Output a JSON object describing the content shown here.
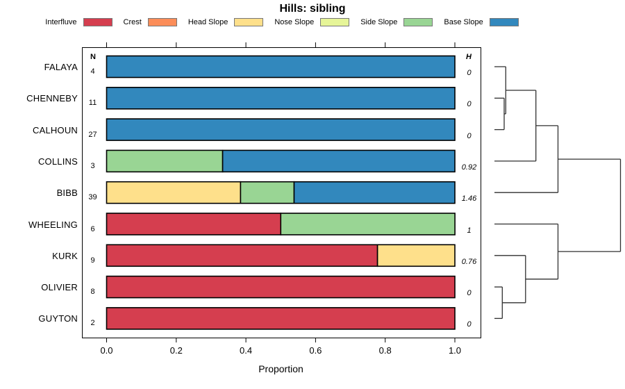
{
  "title": "Hills: sibling",
  "legend": {
    "items": [
      {
        "label": "Interfluve",
        "color": "#D53E4F"
      },
      {
        "label": "Crest",
        "color": "#FC8D59"
      },
      {
        "label": "Head Slope",
        "color": "#FEE08B"
      },
      {
        "label": "Nose Slope",
        "color": "#E6F598"
      },
      {
        "label": "Side Slope",
        "color": "#99D594"
      },
      {
        "label": "Base Slope",
        "color": "#3288BD"
      }
    ]
  },
  "columns": {
    "n_header": "N",
    "h_header": "H"
  },
  "axis": {
    "label": "Proportion",
    "tick_labels": [
      "0.0",
      "0.2",
      "0.4",
      "0.6",
      "0.8",
      "1.0"
    ]
  },
  "chart_data": {
    "type": "bar",
    "orientation": "horizontal",
    "stacked": true,
    "title": "Hills: sibling",
    "xlabel": "Proportion",
    "xlim": [
      0,
      1
    ],
    "x_ticks": [
      0,
      0.2,
      0.4,
      0.6,
      0.8,
      1.0
    ],
    "grid": false,
    "legend_position": "top",
    "categories": [
      "FALAYA",
      "CHENNEBY",
      "CALHOUN",
      "COLLINS",
      "BIBB",
      "WHEELING",
      "KURK",
      "OLIVIER",
      "GUYTON"
    ],
    "n_values": [
      4,
      11,
      27,
      3,
      39,
      6,
      9,
      8,
      2
    ],
    "h_values": [
      "0",
      "0",
      "0",
      "0.92",
      "1.46",
      "1",
      "0.76",
      "0",
      "0"
    ],
    "series": [
      {
        "name": "Interfluve",
        "color": "#D53E4F",
        "values": [
          0,
          0,
          0,
          0,
          0,
          0.5,
          0.7778,
          1,
          1
        ]
      },
      {
        "name": "Crest",
        "color": "#FC8D59",
        "values": [
          0,
          0,
          0,
          0,
          0,
          0,
          0,
          0,
          0
        ]
      },
      {
        "name": "Head Slope",
        "color": "#FEE08B",
        "values": [
          0,
          0,
          0,
          0,
          0.3846,
          0,
          0.2222,
          0,
          0
        ]
      },
      {
        "name": "Nose Slope",
        "color": "#E6F598",
        "values": [
          0,
          0,
          0,
          0,
          0,
          0,
          0,
          0,
          0
        ]
      },
      {
        "name": "Side Slope",
        "color": "#99D594",
        "values": [
          0,
          0,
          0,
          0.3333,
          0.1538,
          0.5,
          0,
          0,
          0
        ]
      },
      {
        "name": "Base Slope",
        "color": "#3288BD",
        "values": [
          1,
          1,
          1,
          0.6667,
          0.4616,
          0,
          0,
          0,
          0
        ]
      }
    ],
    "dendrogram": {
      "leaves": [
        "FALAYA",
        "CHENNEBY",
        "CALHOUN",
        "COLLINS",
        "BIBB",
        "WHEELING",
        "KURK",
        "OLIVIER",
        "GUYTON"
      ],
      "merges": [
        {
          "id": "m0",
          "a": "CHENNEBY",
          "b": "CALHOUN",
          "height": 0.077
        },
        {
          "id": "m1",
          "a": "FALAYA",
          "b": "m0",
          "height": 0.09
        },
        {
          "id": "m2",
          "a": "m1",
          "b": "COLLINS",
          "height": 0.329
        },
        {
          "id": "m3",
          "a": "m2",
          "b": "BIBB",
          "height": 0.504
        },
        {
          "id": "m4",
          "a": "OLIVIER",
          "b": "GUYTON",
          "height": 0.062
        },
        {
          "id": "m5",
          "a": "KURK",
          "b": "m4",
          "height": 0.247
        },
        {
          "id": "m6",
          "a": "WHEELING",
          "b": "m5",
          "height": 0.504
        },
        {
          "id": "m7",
          "a": "m3",
          "b": "m6",
          "height": 1.0
        }
      ]
    }
  }
}
